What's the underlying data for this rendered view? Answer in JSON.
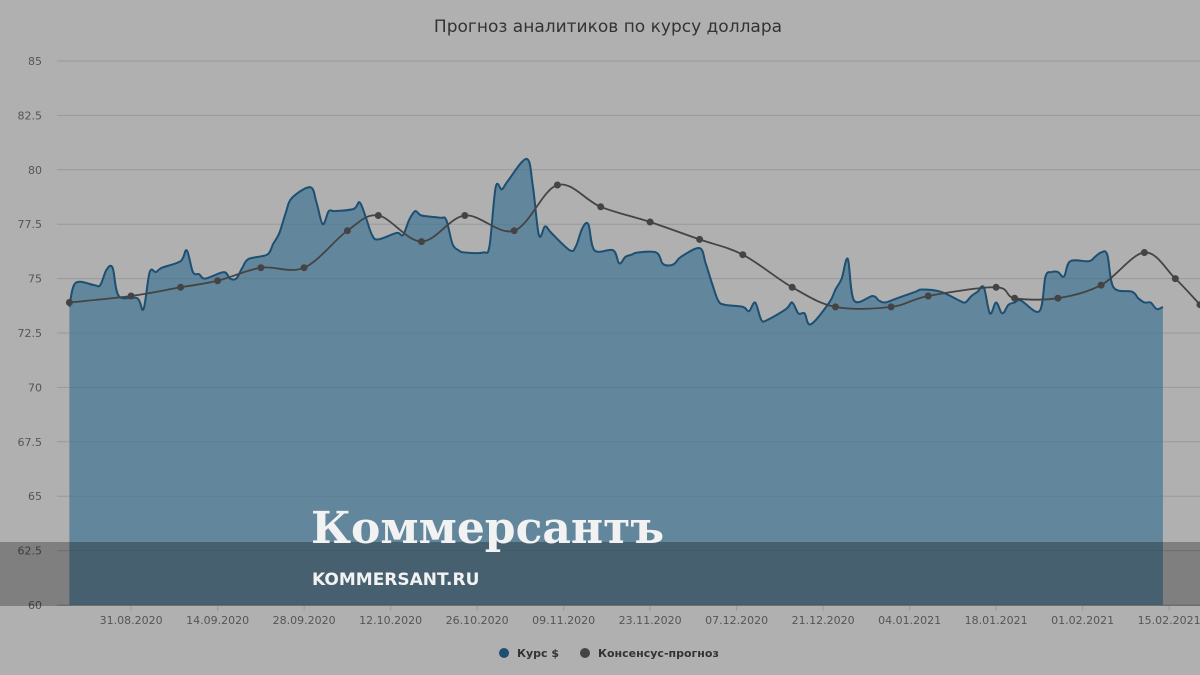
{
  "chart_data": {
    "type": "line",
    "title": "Прогноз аналитиков по курсу доллара",
    "xlabel": "",
    "ylabel": "",
    "ylim": [
      60,
      85
    ],
    "y_ticks": [
      "85",
      "82.5",
      "80",
      "77.5",
      "75",
      "72.5",
      "70",
      "67.5",
      "65",
      "62.5",
      "60"
    ],
    "x_range": [
      "2020-08-19",
      "2021-02-20"
    ],
    "x_ticks": [
      "31.08.2020",
      "14.09.2020",
      "28.09.2020",
      "12.10.2020",
      "26.10.2020",
      "09.11.2020",
      "23.11.2020",
      "07.12.2020",
      "21.12.2020",
      "04.01.2021",
      "18.01.2021",
      "01.02.2021",
      "15.02.2021"
    ],
    "grid": true,
    "legend_position": "bottom",
    "series": [
      {
        "name": "Курс $",
        "style": "area",
        "color": "#1d4f72",
        "points": [
          [
            "2020-08-21",
            73.7
          ],
          [
            "2020-08-22",
            74.8
          ],
          [
            "2020-08-25",
            74.7
          ],
          [
            "2020-08-26",
            74.7
          ],
          [
            "2020-08-27",
            75.4
          ],
          [
            "2020-08-28",
            75.5
          ],
          [
            "2020-08-29",
            74.2
          ],
          [
            "2020-09-01",
            74.1
          ],
          [
            "2020-09-02",
            73.6
          ],
          [
            "2020-09-03",
            75.3
          ],
          [
            "2020-09-04",
            75.3
          ],
          [
            "2020-09-05",
            75.5
          ],
          [
            "2020-09-08",
            75.8
          ],
          [
            "2020-09-09",
            76.3
          ],
          [
            "2020-09-10",
            75.3
          ],
          [
            "2020-09-11",
            75.2
          ],
          [
            "2020-09-12",
            75.0
          ],
          [
            "2020-09-15",
            75.3
          ],
          [
            "2020-09-16",
            75.0
          ],
          [
            "2020-09-17",
            75.0
          ],
          [
            "2020-09-18",
            75.5
          ],
          [
            "2020-09-19",
            75.9
          ],
          [
            "2020-09-22",
            76.1
          ],
          [
            "2020-09-23",
            76.6
          ],
          [
            "2020-09-24",
            77.1
          ],
          [
            "2020-09-25",
            78.0
          ],
          [
            "2020-09-26",
            78.7
          ],
          [
            "2020-09-29",
            79.2
          ],
          [
            "2020-09-30",
            78.5
          ],
          [
            "2020-10-01",
            77.5
          ],
          [
            "2020-10-02",
            78.1
          ],
          [
            "2020-10-03",
            78.1
          ],
          [
            "2020-10-06",
            78.2
          ],
          [
            "2020-10-07",
            78.5
          ],
          [
            "2020-10-08",
            77.8
          ],
          [
            "2020-10-09",
            77.0
          ],
          [
            "2020-10-10",
            76.8
          ],
          [
            "2020-10-13",
            77.1
          ],
          [
            "2020-10-14",
            77.0
          ],
          [
            "2020-10-15",
            77.7
          ],
          [
            "2020-10-16",
            78.1
          ],
          [
            "2020-10-17",
            77.9
          ],
          [
            "2020-10-20",
            77.8
          ],
          [
            "2020-10-21",
            77.7
          ],
          [
            "2020-10-22",
            76.6
          ],
          [
            "2020-10-23",
            76.3
          ],
          [
            "2020-10-24",
            76.2
          ],
          [
            "2020-10-27",
            76.2
          ],
          [
            "2020-10-28",
            76.5
          ],
          [
            "2020-10-29",
            79.2
          ],
          [
            "2020-10-30",
            79.1
          ],
          [
            "2020-10-31",
            79.5
          ],
          [
            "2020-11-03",
            80.5
          ],
          [
            "2020-11-04",
            79.3
          ],
          [
            "2020-11-05",
            77.0
          ],
          [
            "2020-11-06",
            77.4
          ],
          [
            "2020-11-07",
            77.1
          ],
          [
            "2020-11-10",
            76.3
          ],
          [
            "2020-11-11",
            76.5
          ],
          [
            "2020-11-12",
            77.3
          ],
          [
            "2020-11-13",
            77.5
          ],
          [
            "2020-11-14",
            76.3
          ],
          [
            "2020-11-17",
            76.3
          ],
          [
            "2020-11-18",
            75.7
          ],
          [
            "2020-11-19",
            76.0
          ],
          [
            "2020-11-20",
            76.1
          ],
          [
            "2020-11-21",
            76.2
          ],
          [
            "2020-11-24",
            76.2
          ],
          [
            "2020-11-25",
            75.7
          ],
          [
            "2020-11-26",
            75.6
          ],
          [
            "2020-11-27",
            75.7
          ],
          [
            "2020-11-28",
            76.0
          ],
          [
            "2020-12-01",
            76.4
          ],
          [
            "2020-12-02",
            75.7
          ],
          [
            "2020-12-03",
            74.8
          ],
          [
            "2020-12-04",
            74.0
          ],
          [
            "2020-12-05",
            73.8
          ],
          [
            "2020-12-08",
            73.7
          ],
          [
            "2020-12-09",
            73.5
          ],
          [
            "2020-12-10",
            73.9
          ],
          [
            "2020-12-11",
            73.1
          ],
          [
            "2020-12-12",
            73.1
          ],
          [
            "2020-12-15",
            73.6
          ],
          [
            "2020-12-16",
            73.9
          ],
          [
            "2020-12-17",
            73.4
          ],
          [
            "2020-12-18",
            73.4
          ],
          [
            "2020-12-19",
            72.9
          ],
          [
            "2020-12-22",
            73.9
          ],
          [
            "2020-12-23",
            74.5
          ],
          [
            "2020-12-24",
            75.0
          ],
          [
            "2020-12-25",
            75.9
          ],
          [
            "2020-12-26",
            74.0
          ],
          [
            "2020-12-29",
            74.2
          ],
          [
            "2020-12-30",
            74.0
          ],
          [
            "2020-12-31",
            73.9
          ],
          [
            "2021-01-02",
            74.1
          ],
          [
            "2021-01-05",
            74.4
          ],
          [
            "2021-01-06",
            74.5
          ],
          [
            "2021-01-09",
            74.4
          ],
          [
            "2021-01-12",
            74.0
          ],
          [
            "2021-01-13",
            73.9
          ],
          [
            "2021-01-14",
            74.2
          ],
          [
            "2021-01-15",
            74.4
          ],
          [
            "2021-01-16",
            74.6
          ],
          [
            "2021-01-17",
            73.4
          ],
          [
            "2021-01-18",
            73.9
          ],
          [
            "2021-01-19",
            73.4
          ],
          [
            "2021-01-20",
            73.8
          ],
          [
            "2021-01-21",
            73.9
          ],
          [
            "2021-01-22",
            74.0
          ],
          [
            "2021-01-25",
            73.5
          ],
          [
            "2021-01-26",
            75.1
          ],
          [
            "2021-01-27",
            75.3
          ],
          [
            "2021-01-28",
            75.3
          ],
          [
            "2021-01-29",
            75.1
          ],
          [
            "2021-01-30",
            75.8
          ],
          [
            "2021-02-02",
            75.8
          ],
          [
            "2021-02-03",
            76.0
          ],
          [
            "2021-02-04",
            76.2
          ],
          [
            "2021-02-05",
            76.1
          ],
          [
            "2021-02-06",
            74.6
          ],
          [
            "2021-02-09",
            74.4
          ],
          [
            "2021-02-10",
            74.1
          ],
          [
            "2021-02-11",
            73.9
          ],
          [
            "2021-02-12",
            73.9
          ],
          [
            "2021-02-13",
            73.6
          ],
          [
            "2021-02-14",
            73.7
          ]
        ]
      },
      {
        "name": "Консенсус-прогноз",
        "style": "line-markers",
        "color": "#444444",
        "points": [
          [
            "2020-08-21",
            73.9
          ],
          [
            "2020-08-31",
            74.2
          ],
          [
            "2020-09-08",
            74.6
          ],
          [
            "2020-09-14",
            74.9
          ],
          [
            "2020-09-21",
            75.5
          ],
          [
            "2020-09-28",
            75.5
          ],
          [
            "2020-10-05",
            77.2
          ],
          [
            "2020-10-10",
            77.9
          ],
          [
            "2020-10-17",
            76.7
          ],
          [
            "2020-10-24",
            77.9
          ],
          [
            "2020-11-01",
            77.2
          ],
          [
            "2020-11-08",
            79.3
          ],
          [
            "2020-11-15",
            78.3
          ],
          [
            "2020-11-23",
            77.6
          ],
          [
            "2020-12-01",
            76.8
          ],
          [
            "2020-12-08",
            76.1
          ],
          [
            "2020-12-16",
            74.6
          ],
          [
            "2020-12-23",
            73.7
          ],
          [
            "2021-01-01",
            73.7
          ],
          [
            "2021-01-07",
            74.2
          ],
          [
            "2021-01-18",
            74.6
          ],
          [
            "2021-01-21",
            74.1
          ],
          [
            "2021-01-28",
            74.1
          ],
          [
            "2021-02-04",
            74.7
          ],
          [
            "2021-02-11",
            76.2
          ],
          [
            "2021-02-16",
            75.0
          ],
          [
            "2021-02-20",
            73.8
          ]
        ]
      }
    ]
  },
  "watermark": {
    "brand": "Коммерсантъ",
    "site": "KOMMERSANT.RU"
  }
}
